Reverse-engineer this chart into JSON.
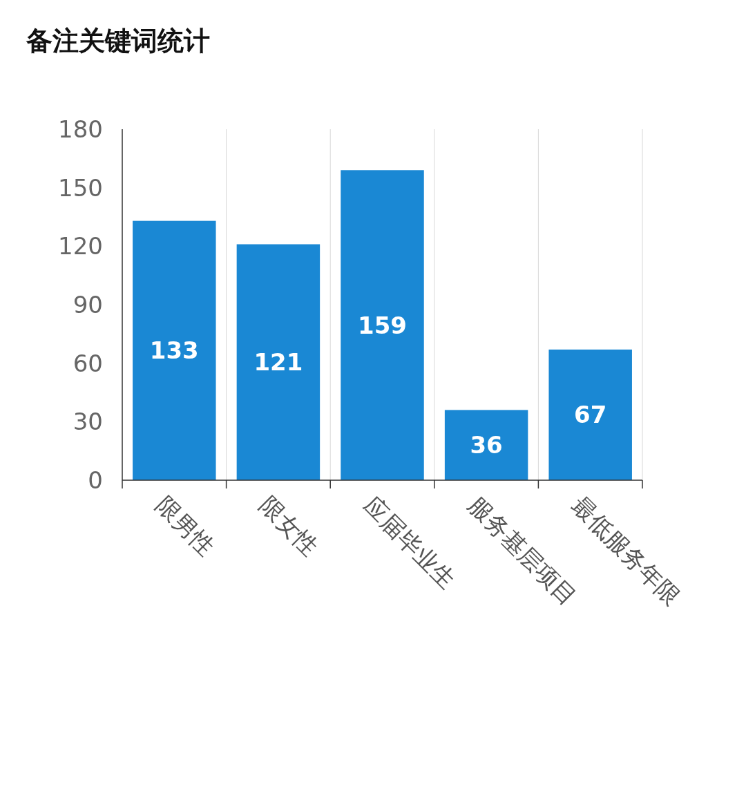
{
  "chart_data": {
    "type": "bar",
    "title": "备注关键词统计",
    "categories": [
      "限男性",
      "限女性",
      "应届毕业生",
      "服务基层项目",
      "最低服务年限"
    ],
    "values": [
      133,
      121,
      159,
      36,
      67
    ],
    "color": "#1a88d4",
    "ylim": [
      0,
      180
    ],
    "yticks": [
      0,
      30,
      60,
      90,
      120,
      150,
      180
    ],
    "grid": "x",
    "data_labels": true
  }
}
